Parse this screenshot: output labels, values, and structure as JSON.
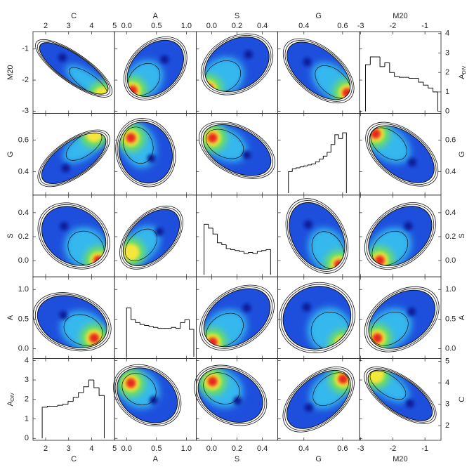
{
  "chart_data": {
    "type": "corner",
    "columns": [
      {
        "label": "C",
        "xlim": [
          1.45,
          5
        ],
        "xticks": [
          2,
          3,
          4,
          5
        ]
      },
      {
        "label": "A",
        "xlim": [
          -0.2,
          1.165
        ],
        "xticks": [
          {
            "value": 0,
            "label": "0.0"
          },
          0.5,
          {
            "value": 1,
            "label": "1.0"
          }
        ]
      },
      {
        "label": "S",
        "xlim": [
          -0.122,
          0.522
        ],
        "xticks": [
          {
            "value": 0,
            "label": "0.0"
          },
          0.2,
          0.4
        ]
      },
      {
        "label": "G",
        "xlim": [
          0.265,
          0.687
        ],
        "xticks": [
          0.4,
          0.6
        ]
      },
      {
        "label": "M20",
        "xlim": [
          -3.04,
          -0.5
        ],
        "xticks": [
          -3,
          -2,
          -1
        ]
      }
    ],
    "rows": [
      {
        "left": {
          "label": "M20",
          "ylim": [
            -3.07,
            -0.44
          ],
          "yticks": [
            -3,
            -2,
            -1
          ]
        },
        "right": {
          "label": "A",
          "label_sub": "DIV",
          "ylim": [
            -0.1,
            4.1
          ],
          "yticks": [
            0,
            1,
            2,
            3,
            4
          ]
        }
      },
      {
        "left": {
          "label": "G",
          "ylim": [
            0.253,
            0.769
          ],
          "yticks": [
            0.4,
            0.6
          ]
        },
        "right": {
          "label": "G",
          "ylim": [
            0.253,
            0.769
          ],
          "yticks": [
            0.4,
            0.6
          ]
        }
      },
      {
        "left": {
          "label": "S",
          "ylim": [
            -0.135,
            0.547
          ],
          "yticks": [
            {
              "value": 0,
              "label": "0.0"
            },
            0.2,
            0.4
          ]
        },
        "right": {
          "label": "S",
          "ylim": [
            -0.135,
            0.547
          ],
          "yticks": [
            {
              "value": 0,
              "label": "0.0"
            },
            0.2,
            0.4
          ]
        }
      },
      {
        "left": {
          "label": "A",
          "ylim": [
            -0.167,
            1.214
          ],
          "yticks": [
            {
              "value": 0,
              "label": "0.0"
            },
            0.5,
            {
              "value": 1,
              "label": "1.0"
            }
          ]
        },
        "right": {
          "label": "A",
          "ylim": [
            -0.167,
            1.214
          ],
          "yticks": [
            {
              "value": 0,
              "label": "0.0"
            },
            0.5,
            {
              "value": 1,
              "label": "1.0"
            }
          ]
        }
      },
      {
        "left": {
          "label": "A",
          "label_sub": "DIV",
          "ylim": [
            -0.1,
            4.1
          ],
          "yticks": [
            0,
            1,
            2,
            3,
            4
          ]
        },
        "right": {
          "label": "C",
          "ylim": [
            1.32,
            5.13
          ],
          "yticks": [
            2,
            3,
            4,
            5
          ]
        }
      }
    ],
    "histograms": [
      {
        "type": "histogram",
        "ylim": [
          -0.1,
          4.1
        ],
        "bins": [
          1.85,
          2.075,
          2.3,
          2.525,
          2.75,
          2.975,
          3.2,
          3.425,
          3.65,
          3.875,
          4.1,
          4.325,
          4.55
        ],
        "values": [
          1.6,
          1.65,
          1.65,
          1.7,
          1.75,
          1.9,
          2.1,
          2.35,
          2.65,
          3.0,
          2.6,
          2.2
        ]
      },
      {
        "type": "histogram",
        "ylim": [
          -0.1,
          4.1
        ],
        "bins": [
          0,
          0.075,
          0.15,
          0.225,
          0.3,
          0.375,
          0.45,
          0.525,
          0.6,
          0.675,
          0.75,
          0.825,
          0.9,
          0.975,
          1.05,
          1.125
        ],
        "values": [
          2.5,
          1.9,
          1.75,
          1.65,
          1.6,
          1.55,
          1.5,
          1.45,
          1.45,
          1.45,
          1.5,
          1.45,
          1.75,
          1.9,
          1.4
        ]
      },
      {
        "type": "histogram",
        "ylim": [
          -0.1,
          4.1
        ],
        "bins": [
          -0.06,
          -0.025,
          0.01,
          0.045,
          0.08,
          0.115,
          0.15,
          0.185,
          0.22,
          0.255,
          0.29,
          0.325,
          0.36,
          0.395,
          0.43,
          0.465
        ],
        "values": [
          2.6,
          2.4,
          2.1,
          1.65,
          1.55,
          1.35,
          1.3,
          1.25,
          1.2,
          1.1,
          1.15,
          1.1,
          1.2,
          1.25,
          1.3
        ]
      },
      {
        "type": "histogram",
        "ylim": [
          -0.1,
          4.1
        ],
        "bins": [
          0.32,
          0.34,
          0.36,
          0.38,
          0.4,
          0.42,
          0.44,
          0.46,
          0.48,
          0.5,
          0.52,
          0.54,
          0.56,
          0.58,
          0.6,
          0.62
        ],
        "values": [
          1.1,
          1.25,
          1.3,
          1.35,
          1.4,
          1.45,
          1.5,
          1.6,
          1.75,
          1.9,
          2.1,
          2.5,
          3.0,
          2.8,
          3.1
        ]
      },
      {
        "type": "histogram",
        "ylim": [
          -0.1,
          4.1
        ],
        "bins": [
          -2.85,
          -2.7,
          -2.55,
          -2.4,
          -2.25,
          -2.1,
          -1.95,
          -1.8,
          -1.65,
          -1.5,
          -1.35,
          -1.2,
          -1.05,
          -0.9,
          -0.75,
          -0.6
        ],
        "values": [
          2.4,
          2.8,
          2.8,
          2.3,
          2.5,
          2.0,
          1.8,
          1.75,
          1.75,
          1.7,
          1.7,
          1.5,
          1.35,
          1.2,
          1.0
        ]
      }
    ]
  }
}
